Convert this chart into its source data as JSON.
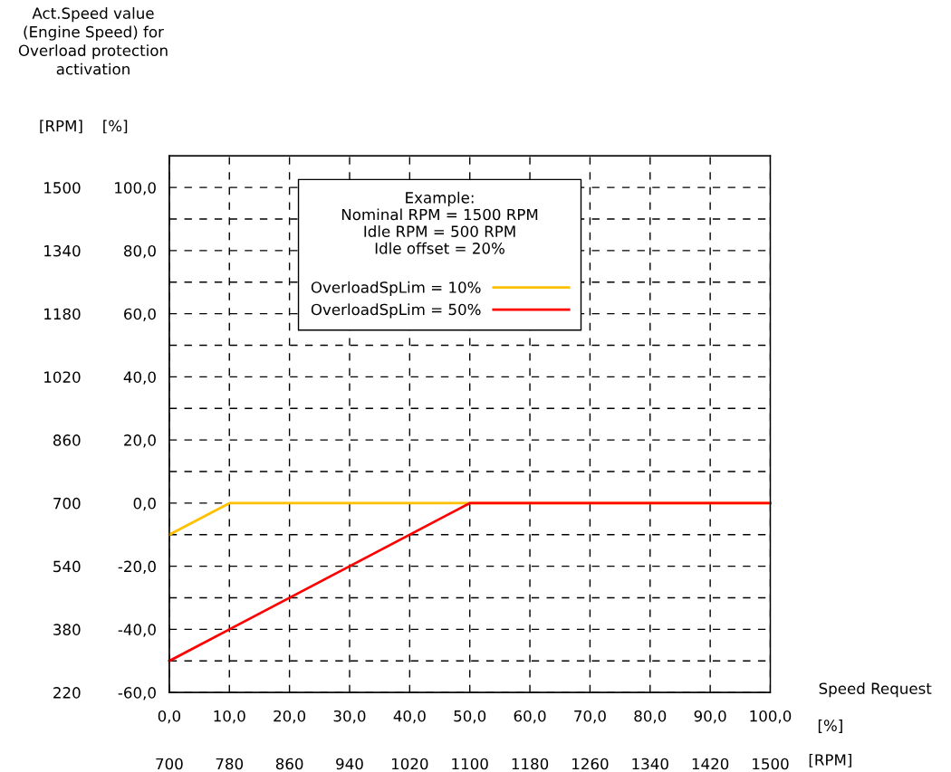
{
  "chart_data": {
    "type": "line",
    "title": "Act.Speed value\n(Engine Speed) for\nOverload protection\nactivation",
    "ylabel": "[%]",
    "y2label": "[RPM]",
    "xlabel": "[%]",
    "x2label": "[RPM]",
    "legend_title": "Example:\nNominal RPM = 1500 RPM\nIdle RPM = 500 RPM\nIdle offset = 20%\n",
    "annotations": [
      "Speed Request"
    ],
    "series": [
      {
        "name": "OverloadSpLim = 10%",
        "color": "#ffc000",
        "x": [
          0,
          10,
          100
        ],
        "values": [
          -10,
          0,
          0
        ]
      },
      {
        "name": "OverloadSpLim = 50%",
        "color": "#ff0000",
        "x": [
          0,
          50,
          100
        ],
        "values": [
          -50,
          0,
          0
        ]
      }
    ],
    "xlim": [
      0,
      100
    ],
    "xticks": [
      {
        "value": 0,
        "label": "0,0"
      },
      {
        "value": 10,
        "label": "10,0"
      },
      {
        "value": 20,
        "label": "20,0"
      },
      {
        "value": 30,
        "label": "30,0"
      },
      {
        "value": 40,
        "label": "40,0"
      },
      {
        "value": 50,
        "label": "50,0"
      },
      {
        "value": 60,
        "label": "60,0"
      },
      {
        "value": 70,
        "label": "70,0"
      },
      {
        "value": 80,
        "label": "80,0"
      },
      {
        "value": 90,
        "label": "90,0"
      },
      {
        "value": 100,
        "label": "100,0"
      }
    ],
    "x2lim": [
      700,
      1500
    ],
    "x2ticks": [
      700,
      780,
      860,
      940,
      1020,
      1100,
      1180,
      1260,
      1340,
      1420,
      1500
    ],
    "ylim": [
      -60,
      110
    ],
    "yticks": [
      {
        "value": -60,
        "label": "-60,0"
      },
      {
        "value": -50,
        "label": null
      },
      {
        "value": -40,
        "label": "-40,0"
      },
      {
        "value": -30,
        "label": null
      },
      {
        "value": -20,
        "label": "-20,0"
      },
      {
        "value": -10,
        "label": null
      },
      {
        "value": 0,
        "label": "0,0"
      },
      {
        "value": 10,
        "label": null
      },
      {
        "value": 20,
        "label": "20,0"
      },
      {
        "value": 30,
        "label": null
      },
      {
        "value": 40,
        "label": "40,0"
      },
      {
        "value": 50,
        "label": null
      },
      {
        "value": 60,
        "label": "60,0"
      },
      {
        "value": 70,
        "label": null
      },
      {
        "value": 80,
        "label": "80,0"
      },
      {
        "value": 90,
        "label": null
      },
      {
        "value": 100,
        "label": "100,0"
      }
    ],
    "y2lim": [
      220,
      1580
    ],
    "y2ticks": [
      220,
      380,
      540,
      700,
      860,
      1020,
      1180,
      1340,
      1500
    ],
    "grid": true,
    "legend": "top",
    "line_style": "solid",
    "marker": "none"
  }
}
